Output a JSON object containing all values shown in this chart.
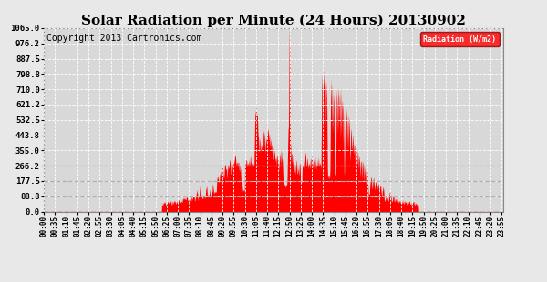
{
  "title": "Solar Radiation per Minute (24 Hours) 20130902",
  "copyright_text": "Copyright 2013 Cartronics.com",
  "legend_label": "Radiation (W/m2)",
  "yticks": [
    0.0,
    88.8,
    177.5,
    266.2,
    355.0,
    443.8,
    532.5,
    621.2,
    710.0,
    798.8,
    887.5,
    976.2,
    1065.0
  ],
  "ymax": 1065.0,
  "ymin": 0.0,
  "fill_color": "#ff0000",
  "line_color": "#ff0000",
  "background_color": "#e8e8e8",
  "grid_color": "#ffffff",
  "dashed_hline_color": "#aaaaaa",
  "dashed_hline_values": [
    88.8,
    177.5,
    266.2
  ],
  "title_fontsize": 11,
  "copyright_fontsize": 7,
  "xtick_interval_minutes": 35,
  "total_minutes": 1440,
  "plot_bg": "#d8d8d8"
}
